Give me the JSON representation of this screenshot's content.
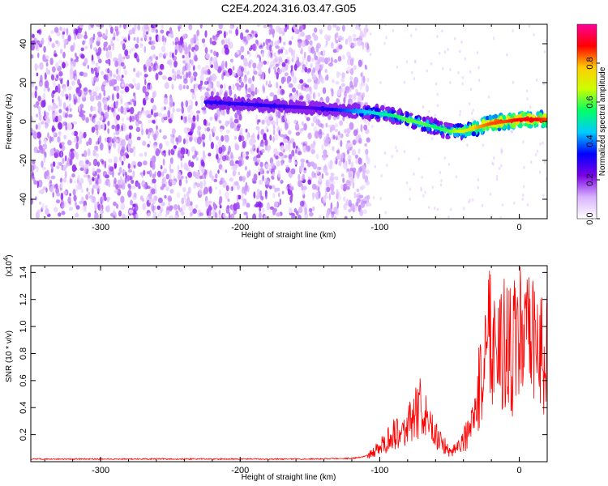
{
  "title": "C2E4.2024.316.03.47.G05",
  "chart_data": [
    {
      "type": "heatmap",
      "xlabel": "Height of straight line (km)",
      "ylabel": "Frequency (Hz)",
      "xlim": [
        -350,
        20
      ],
      "ylim": [
        -50,
        50
      ],
      "xticks": [
        -300,
        -200,
        -100,
        0
      ],
      "yticks": [
        -40,
        -20,
        0,
        20,
        40
      ],
      "colorbar": {
        "label": "Normalized spectral amplitude",
        "range": [
          0.0,
          1.0
        ],
        "ticks": [
          "0.0",
          "0.2",
          "0.4",
          "0.6",
          "0.8"
        ],
        "colormap": [
          "#ffffff",
          "#d9b3ff",
          "#7a00e6",
          "#0000ff",
          "#00ccff",
          "#00ff66",
          "#ccff00",
          "#ffcc00",
          "#ff0000",
          "#ff0099"
        ]
      },
      "signal_track": {
        "x": [
          -225,
          -200,
          -175,
          -150,
          -130,
          -110,
          -100,
          -90,
          -80,
          -70,
          -60,
          -50,
          -40,
          -30,
          -20,
          -10,
          0,
          10,
          20
        ],
        "frequency": [
          10,
          9,
          8,
          7,
          6,
          5,
          4,
          3,
          1,
          -1,
          -3,
          -5,
          -5,
          -3,
          -1,
          0,
          1,
          1,
          1
        ],
        "amplitude": [
          0.3,
          0.3,
          0.3,
          0.25,
          0.35,
          0.45,
          0.5,
          0.55,
          0.6,
          0.6,
          0.55,
          0.6,
          0.7,
          0.8,
          0.85,
          0.85,
          0.9,
          0.9,
          0.85
        ]
      }
    },
    {
      "type": "line",
      "xlabel": "Height of straight line (km)",
      "ylabel": "SNR (10 * v/v)",
      "y_multiplier": "(x10",
      "y_multiplier_exp": "4",
      "y_multiplier_close": ")",
      "xlim": [
        -350,
        20
      ],
      "ylim": [
        0.0,
        1.45
      ],
      "xticks": [
        -300,
        -200,
        -100,
        0
      ],
      "yticks": [
        0.2,
        0.4,
        0.6,
        0.8,
        1.0,
        1.2,
        1.4
      ],
      "color": "#ff0000",
      "series": [
        {
          "x": [
            -350,
            -300,
            -250,
            -200,
            -150,
            -120,
            -110,
            -100,
            -90,
            -80,
            -75,
            -70,
            -65,
            -60,
            -55,
            -50,
            -45,
            -40,
            -35,
            -30,
            -25,
            -20,
            -15,
            -10,
            -5,
            0,
            5,
            10,
            15,
            20
          ],
          "values": [
            0.02,
            0.02,
            0.02,
            0.02,
            0.02,
            0.025,
            0.04,
            0.12,
            0.25,
            0.3,
            0.4,
            0.48,
            0.3,
            0.25,
            0.15,
            0.1,
            0.12,
            0.2,
            0.25,
            0.55,
            0.95,
            1.2,
            1.05,
            1.0,
            0.95,
            1.15,
            1.0,
            1.05,
            0.95,
            1.0
          ]
        }
      ]
    }
  ]
}
